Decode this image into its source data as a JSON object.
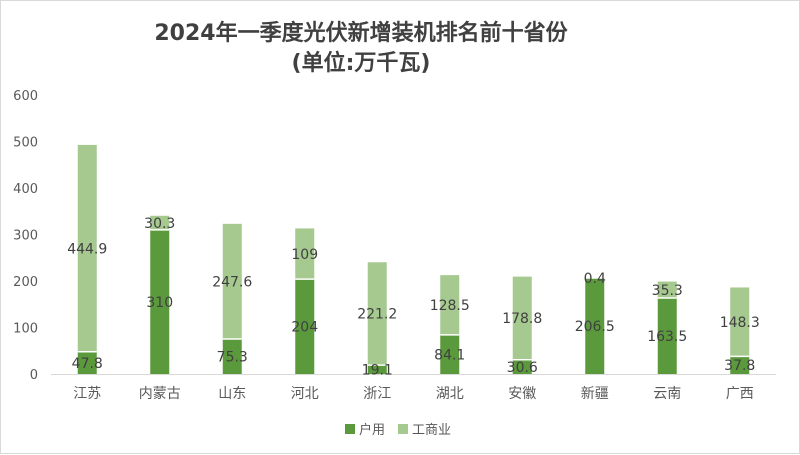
{
  "chart_data": {
    "type": "bar",
    "stacked": true,
    "title": "2024年一季度光伏新增装机排名前十省份",
    "subtitle": "(单位:万千瓦)",
    "categories": [
      "江苏",
      "内蒙古",
      "山东",
      "河北",
      "浙江",
      "湖北",
      "安徽",
      "新疆",
      "云南",
      "广西"
    ],
    "series": [
      {
        "name": "户用",
        "color": "#5b9a3c",
        "values": [
          47.8,
          310,
          75.3,
          204,
          19.1,
          84.1,
          30.6,
          206.5,
          163.5,
          37.8
        ]
      },
      {
        "name": "工商业",
        "color": "#a6c990",
        "values": [
          444.9,
          30.3,
          247.6,
          109,
          221.2,
          128.5,
          178.8,
          0.4,
          35.3,
          148.3
        ]
      }
    ],
    "data_labels": [
      [
        "47.8",
        "310",
        "75.3",
        "204",
        "19.1",
        "84.1",
        "30.6",
        "206.5",
        "163.5",
        "37.8"
      ],
      [
        "444.9",
        "30.3",
        "247.6",
        "109",
        "221.2",
        "128.5",
        "178.8",
        "0.4",
        "35.3",
        "148.3"
      ]
    ],
    "yticks": [
      "0",
      "100",
      "200",
      "300",
      "400",
      "500",
      "600"
    ],
    "ylim": [
      0,
      600
    ],
    "grid": false,
    "legend_position": "bottom"
  }
}
